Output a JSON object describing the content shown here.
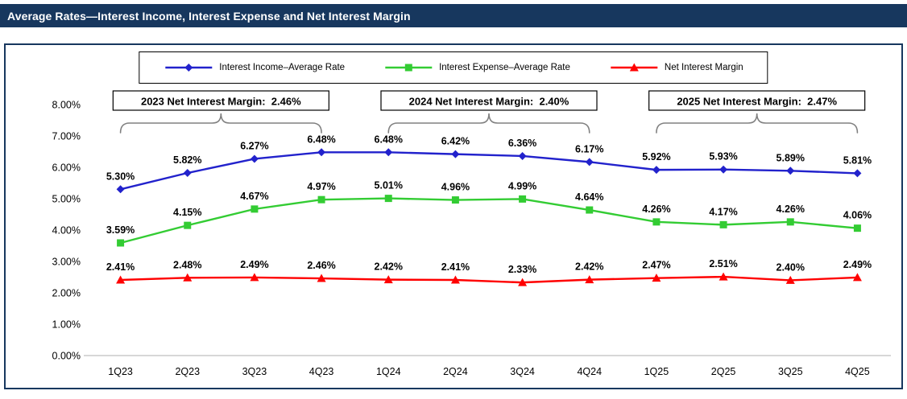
{
  "header": {
    "title": "Average Rates—Interest Income, Interest Expense and Net Interest Margin"
  },
  "chart_data": {
    "type": "line",
    "title": "Average Rates—Interest Income, Interest Expense and Net Interest Margin",
    "categories": [
      "1Q23",
      "2Q23",
      "3Q23",
      "4Q23",
      "1Q24",
      "2Q24",
      "3Q24",
      "4Q24",
      "1Q25",
      "2Q25",
      "3Q25",
      "4Q25"
    ],
    "series": [
      {
        "name": "Interest Income–Average Rate",
        "color": "#2222CC",
        "marker": "diamond",
        "values": [
          5.3,
          5.82,
          6.27,
          6.48,
          6.48,
          6.42,
          6.36,
          6.17,
          5.92,
          5.93,
          5.89,
          5.81
        ]
      },
      {
        "name": "Interest Expense–Average Rate",
        "color": "#33CC33",
        "marker": "square",
        "values": [
          3.59,
          4.15,
          4.67,
          4.97,
          5.01,
          4.96,
          4.99,
          4.64,
          4.26,
          4.17,
          4.26,
          4.06
        ]
      },
      {
        "name": "Net Interest Margin",
        "color": "#FF0000",
        "marker": "triangle",
        "values": [
          2.41,
          2.48,
          2.49,
          2.46,
          2.42,
          2.41,
          2.33,
          2.42,
          2.47,
          2.51,
          2.4,
          2.49
        ]
      }
    ],
    "annotations": [
      {
        "label": "2023 Net Interest Margin:  2.46%",
        "from": 0,
        "to": 3
      },
      {
        "label": "2024 Net Interest Margin:  2.40%",
        "from": 4,
        "to": 7
      },
      {
        "label": "2025 Net Interest Margin:  2.47%",
        "from": 8,
        "to": 11
      }
    ],
    "y_ticks": [
      "0.00%",
      "1.00%",
      "2.00%",
      "3.00%",
      "4.00%",
      "5.00%",
      "6.00%",
      "7.00%",
      "8.00%"
    ],
    "y_axis": {
      "min": 0,
      "max": 8,
      "step": 1
    },
    "ylim": [
      0,
      8
    ],
    "grid": false,
    "legend_position": "top",
    "value_label_suffix": "%",
    "colors": {
      "header_bar": "#17375E",
      "axis_line": "#BFBFBF",
      "bracket": "#808080"
    }
  }
}
